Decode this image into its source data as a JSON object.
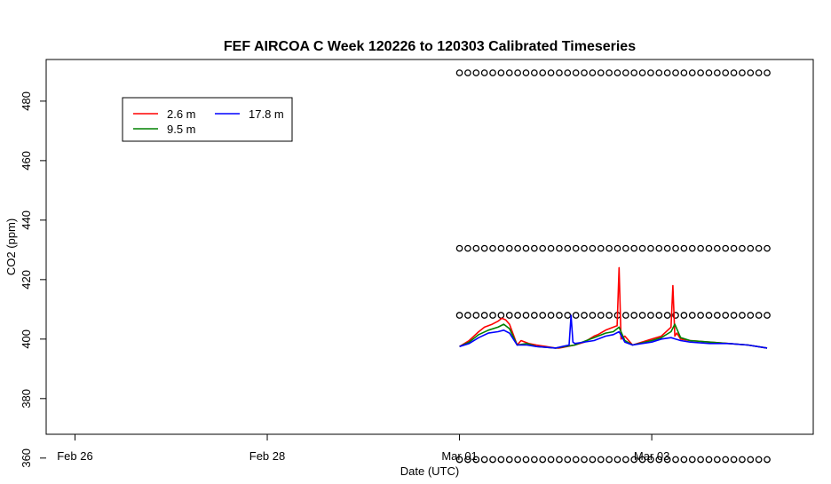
{
  "chart_data": {
    "type": "line",
    "title": "FEF AIRCOA C  Week 120226 to 120303  Calibrated Timeseries",
    "xlabel": "Date (UTC)",
    "ylabel": "CO2 (ppm)",
    "xlim_days": [
      -0.15,
      3.84
    ],
    "ylim": [
      368,
      494
    ],
    "x_ticks": [
      {
        "label": "Feb 26",
        "day": 0
      },
      {
        "label": "Feb 28",
        "day": 1
      },
      {
        "label": "Mar 01",
        "day": 2
      },
      {
        "label": "Mar 03",
        "day": 3
      }
    ],
    "y_ticks": [
      360,
      380,
      400,
      420,
      440,
      460,
      480
    ],
    "legend": {
      "position": "top-left",
      "entries": [
        {
          "name": "2.6 m",
          "color": "#ff0000"
        },
        {
          "name": "9.5 m",
          "color": "#008000"
        },
        {
          "name": "17.8 m",
          "color": "#0000ff"
        }
      ]
    },
    "series": [
      {
        "name": "2.6 m",
        "color": "#ff0000",
        "x": [
          2.0,
          2.05,
          2.1,
          2.13,
          2.17,
          2.2,
          2.22,
          2.24,
          2.26,
          2.3,
          2.32,
          2.36,
          2.4,
          2.45,
          2.5,
          2.52,
          2.56,
          2.6,
          2.65,
          2.7,
          2.72,
          2.76,
          2.8,
          2.82,
          2.83,
          2.84,
          2.86,
          2.9,
          2.95,
          3.0,
          3.05,
          3.1,
          3.11,
          3.12,
          3.13,
          3.15,
          3.2,
          3.3,
          3.4,
          3.5,
          3.6
        ],
        "y": [
          397.5,
          399.5,
          402.5,
          404,
          405,
          406,
          407,
          406.5,
          405,
          398,
          399.5,
          398.5,
          398,
          397.5,
          397,
          397,
          397.5,
          398,
          399,
          401,
          401.5,
          403,
          404,
          404.5,
          424,
          400,
          401,
          398,
          399,
          400,
          401,
          404,
          418,
          401,
          402,
          400,
          399.5,
          399,
          398.5,
          398,
          397
        ]
      },
      {
        "name": "9.5 m",
        "color": "#008000",
        "x": [
          2.0,
          2.05,
          2.1,
          2.15,
          2.2,
          2.23,
          2.26,
          2.3,
          2.35,
          2.4,
          2.5,
          2.6,
          2.7,
          2.76,
          2.8,
          2.83,
          2.86,
          2.9,
          3.0,
          3.05,
          3.1,
          3.12,
          3.15,
          3.2,
          3.3,
          3.4,
          3.5,
          3.6
        ],
        "y": [
          397.5,
          399,
          401.5,
          403,
          404,
          405,
          403.5,
          398,
          398.5,
          397.5,
          397,
          398,
          400.5,
          402,
          402.5,
          404,
          399.5,
          398,
          399.5,
          400.5,
          402.5,
          405,
          400.5,
          399.5,
          399,
          398.5,
          398,
          397
        ]
      },
      {
        "name": "17.8 m",
        "color": "#0000ff",
        "x": [
          2.0,
          2.05,
          2.1,
          2.15,
          2.2,
          2.23,
          2.26,
          2.3,
          2.35,
          2.4,
          2.5,
          2.57,
          2.58,
          2.59,
          2.6,
          2.7,
          2.76,
          2.8,
          2.83,
          2.86,
          2.9,
          3.0,
          3.05,
          3.1,
          3.15,
          3.2,
          3.3,
          3.4,
          3.5,
          3.6
        ],
        "y": [
          397.5,
          398.5,
          400.5,
          402,
          402.5,
          403,
          402,
          398,
          398,
          397.5,
          397,
          398,
          408,
          399,
          398.5,
          399.5,
          401,
          401.5,
          402.5,
          399,
          398,
          399,
          400,
          400.5,
          399.5,
          399,
          398.5,
          398.5,
          398,
          397
        ]
      }
    ],
    "calibration_markers": {
      "marker": "open circle",
      "levels": [
        489.5,
        430.5,
        408,
        359.5
      ],
      "x_start_day": 2.0,
      "x_end_day": 3.6,
      "count_per_level": 38
    }
  }
}
